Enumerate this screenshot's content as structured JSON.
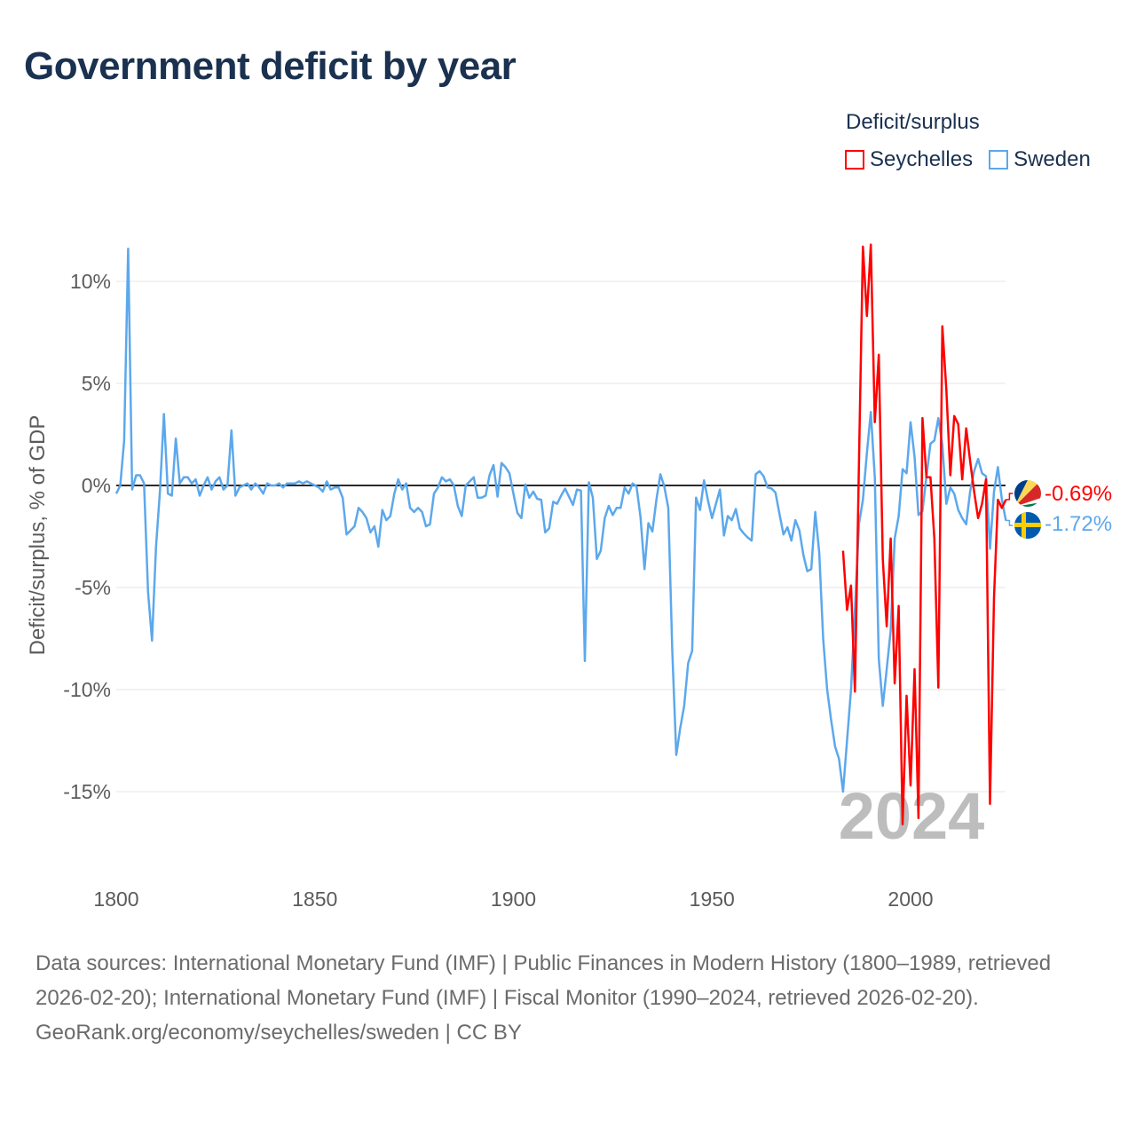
{
  "title": "Government deficit by year",
  "legend": {
    "title": "Deficit/surplus",
    "items": [
      {
        "label": "Seychelles",
        "color": "#ff0000"
      },
      {
        "label": "Sweden",
        "color": "#5ca8ec"
      }
    ]
  },
  "watermark_year": "2024",
  "end_labels": {
    "seychelles": "-0.69%",
    "sweden": "-1.72%"
  },
  "footer": {
    "sources": "Data sources: International Monetary Fund (IMF) | Public Finances in Modern History (1800–1989, retrieved 2026-02-20); International Monetary Fund (IMF) | Fiscal Monitor (1990–2024, retrieved 2026-02-20).",
    "attribution": "GeoRank.org/economy/seychelles/sweden | CC BY"
  },
  "chart_data": {
    "type": "line",
    "title": "Government deficit by year",
    "xlabel": "",
    "ylabel": "Deficit/surplus, % of GDP",
    "xlim": [
      1800,
      2024
    ],
    "ylim": [
      -17,
      12
    ],
    "x_ticks": [
      1800,
      1850,
      1900,
      1950,
      2000
    ],
    "x_tick_labels": [
      "1800",
      "1850",
      "1900",
      "1950",
      "2000"
    ],
    "y_ticks": [
      10,
      5,
      0,
      -5,
      -10,
      -15
    ],
    "y_tick_labels": [
      "10%",
      "5%",
      "0%",
      "-5%",
      "-10%",
      "-15%"
    ],
    "grid": true,
    "legend_position": "top-right",
    "series": [
      {
        "name": "Seychelles",
        "color": "#ff0000",
        "start_year": 1983,
        "values": [
          -3.2,
          -6.1,
          -4.9,
          -10.1,
          1.0,
          11.7,
          8.3,
          11.8,
          3.1,
          6.4,
          -3.6,
          -6.9,
          -2.6,
          -9.7,
          -5.9,
          -16.6,
          -10.3,
          -14.7,
          -9.0,
          -16.3,
          3.3,
          0.4,
          0.4,
          -2.6,
          -9.9,
          7.8,
          4.7,
          0.5,
          3.4,
          3.0,
          0.3,
          2.8,
          1.2,
          -0.3,
          -1.6,
          -0.9,
          0.3,
          -15.6,
          -5.5,
          -0.7,
          -1.1,
          -0.69
        ]
      },
      {
        "name": "Sweden",
        "color": "#5ca8ec",
        "start_year": 1800,
        "values": [
          -0.4,
          0,
          2.2,
          11.6,
          -0.2,
          0.5,
          0.5,
          0.1,
          -5.2,
          -7.6,
          -3.0,
          -0.3,
          3.5,
          -0.4,
          -0.5,
          2.3,
          0.1,
          0.4,
          0.4,
          0.1,
          0.3,
          -0.5,
          0.0,
          0.4,
          -0.2,
          0.2,
          0.4,
          -0.2,
          0.0,
          2.7,
          -0.5,
          -0.1,
          0.0,
          0.1,
          -0.2,
          0.1,
          -0.1,
          -0.4,
          0.1,
          0.0,
          0.0,
          0.1,
          -0.1,
          0.1,
          0.1,
          0.1,
          0.2,
          0.1,
          0.2,
          0.1,
          0.0,
          -0.1,
          -0.3,
          0.2,
          -0.2,
          -0.1,
          -0.1,
          -0.6,
          -2.4,
          -2.2,
          -2.0,
          -1.1,
          -1.3,
          -1.6,
          -2.3,
          -2.0,
          -3.0,
          -1.2,
          -1.7,
          -1.5,
          -0.4,
          0.3,
          -0.2,
          0.1,
          -1.1,
          -1.3,
          -1.1,
          -1.3,
          -2.0,
          -1.9,
          -0.4,
          -0.1,
          0.4,
          0.2,
          0.3,
          0.0,
          -1.0,
          -1.5,
          0.0,
          0.2,
          0.4,
          -0.6,
          -0.6,
          -0.5,
          0.5,
          1.0,
          -0.55,
          1.1,
          0.9,
          0.6,
          -0.4,
          -1.35,
          -1.6,
          0.05,
          -0.6,
          -0.3,
          -0.65,
          -0.7,
          -2.3,
          -2.1,
          -0.8,
          -0.9,
          -0.5,
          -0.15,
          -0.55,
          -0.95,
          -0.2,
          -0.25,
          -8.6,
          0.15,
          -0.6,
          -3.6,
          -3.2,
          -1.6,
          -1.0,
          -1.45,
          -1.1,
          -1.1,
          -0.1,
          -0.4,
          0.1,
          -0.05,
          -1.55,
          -4.1,
          -1.85,
          -2.25,
          -0.7,
          0.55,
          -0.05,
          -1.1,
          -8.1,
          -13.2,
          -11.9,
          -10.8,
          -8.7,
          -8.1,
          -0.6,
          -1.2,
          0.25,
          -0.75,
          -1.6,
          -0.9,
          -0.2,
          -2.45,
          -1.5,
          -1.7,
          -1.15,
          -2.1,
          -2.35,
          -2.55,
          -2.7,
          0.55,
          0.7,
          0.45,
          -0.1,
          -0.15,
          -0.35,
          -1.4,
          -2.4,
          -2.05,
          -2.7,
          -1.7,
          -2.2,
          -3.4,
          -4.2,
          -4.1,
          -1.3,
          -3.3,
          -7.5,
          -10.0,
          -11.5,
          -12.8,
          -13.4,
          -15.0,
          -12.5,
          -10.0,
          -6.1,
          -1.9,
          -0.7,
          1.6,
          3.6,
          0.4,
          -8.5,
          -10.8,
          -9.0,
          -7.1,
          -2.6,
          -1.5,
          0.8,
          0.6,
          3.1,
          1.4,
          -1.45,
          -1.25,
          0.45,
          2.05,
          2.2,
          3.3,
          2.0,
          -0.9,
          -0.1,
          -0.4,
          -1.2,
          -1.6,
          -1.9,
          -0.3,
          0.7,
          1.3,
          0.6,
          0.45,
          -3.1,
          -0.3,
          0.9,
          -0.7,
          -1.72
        ]
      }
    ]
  }
}
